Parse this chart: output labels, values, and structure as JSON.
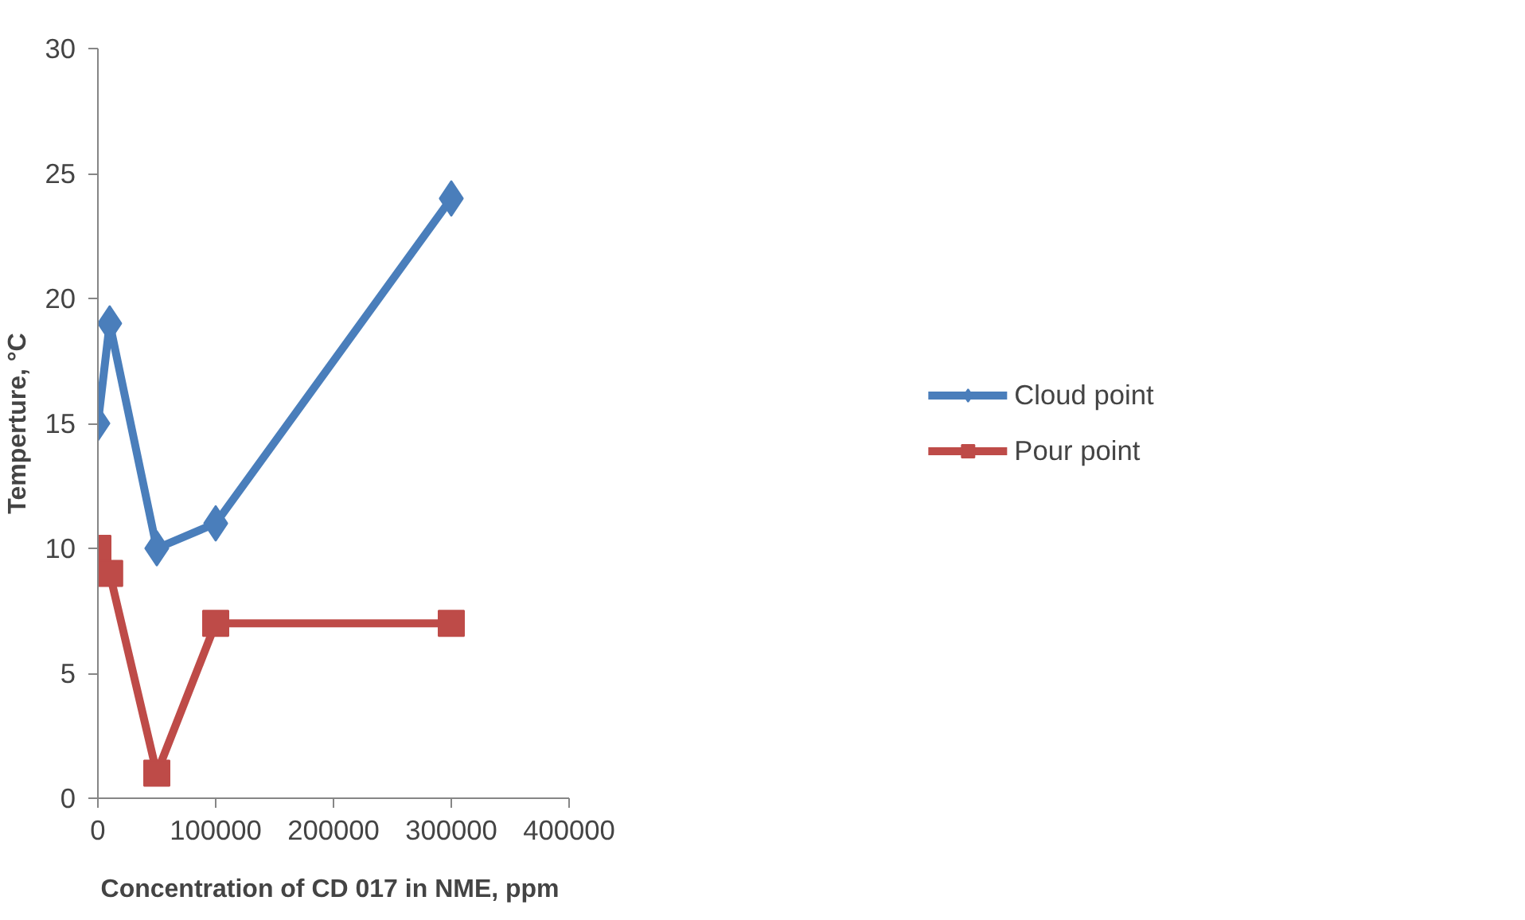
{
  "chart_data": {
    "type": "line",
    "xlabel": "Concentration of  CD 017 in NME, ppm",
    "ylabel": "Temperture, °C",
    "x": [
      0,
      10000,
      50000,
      100000,
      300000
    ],
    "series": [
      {
        "name": "Cloud point",
        "color": "#4a7ebb",
        "marker": "diamond",
        "values": [
          15,
          19,
          10,
          11,
          24
        ]
      },
      {
        "name": "Pour point",
        "color": "#be4b48",
        "marker": "square",
        "values": [
          10,
          9,
          1,
          7,
          7
        ]
      }
    ],
    "xlim": [
      0,
      400000
    ],
    "xticks": [
      0,
      100000,
      200000,
      300000,
      400000
    ],
    "ylim": [
      0,
      30
    ],
    "yticks": [
      0,
      5,
      10,
      15,
      20,
      25,
      30
    ],
    "grid": false,
    "legend": "right",
    "line_style": "solid"
  }
}
